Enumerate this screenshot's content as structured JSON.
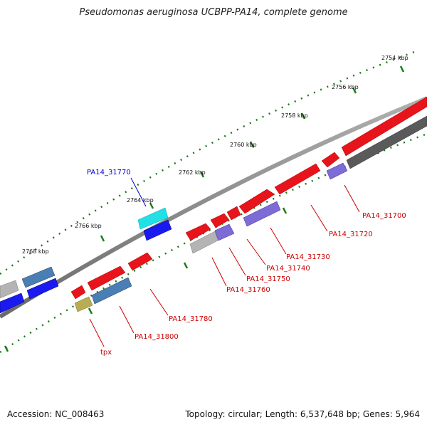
{
  "title": "Pseudomonas aeruginosa UCBPP-PA14, complete genome",
  "footer": {
    "accession": "Accession: NC_008463",
    "topology": "Topology: circular; Length: 6,537,648 bp; Genes: 5,964"
  },
  "ruler": {
    "tick_labels": [
      "2754 kbp",
      "2756 kbp",
      "2758 kbp",
      "2760 kbp",
      "2762 kbp",
      "2764 kbp",
      "2766 kbp",
      "2768 kbp"
    ],
    "tick_color": "#1b7a1b"
  },
  "colors": {
    "red_gene": "#e8141b",
    "blue_gene": "#1a1af0",
    "steel_gene": "#4a7fb5",
    "cyan_gene": "#22e0e6",
    "violet_gene": "#7d6bd6",
    "gray_gene": "#b4b4b4",
    "dark_gene": "#5a5a5a",
    "olive_gene": "#b9ad54",
    "backbone": "#8c8c8c",
    "label_red": "#cc0000",
    "label_blue": "#0000cc"
  },
  "gene_labels": [
    {
      "text": "PA14_31770",
      "color": "blue"
    },
    {
      "text": "PA14_31700",
      "color": "red"
    },
    {
      "text": "PA14_31720",
      "color": "red"
    },
    {
      "text": "PA14_31730",
      "color": "red"
    },
    {
      "text": "PA14_31740",
      "color": "red"
    },
    {
      "text": "PA14_31750",
      "color": "red"
    },
    {
      "text": "PA14_31760",
      "color": "red"
    },
    {
      "text": "PA14_31780",
      "color": "red"
    },
    {
      "text": "PA14_31800",
      "color": "red"
    },
    {
      "text": "tpx",
      "color": "red"
    }
  ]
}
